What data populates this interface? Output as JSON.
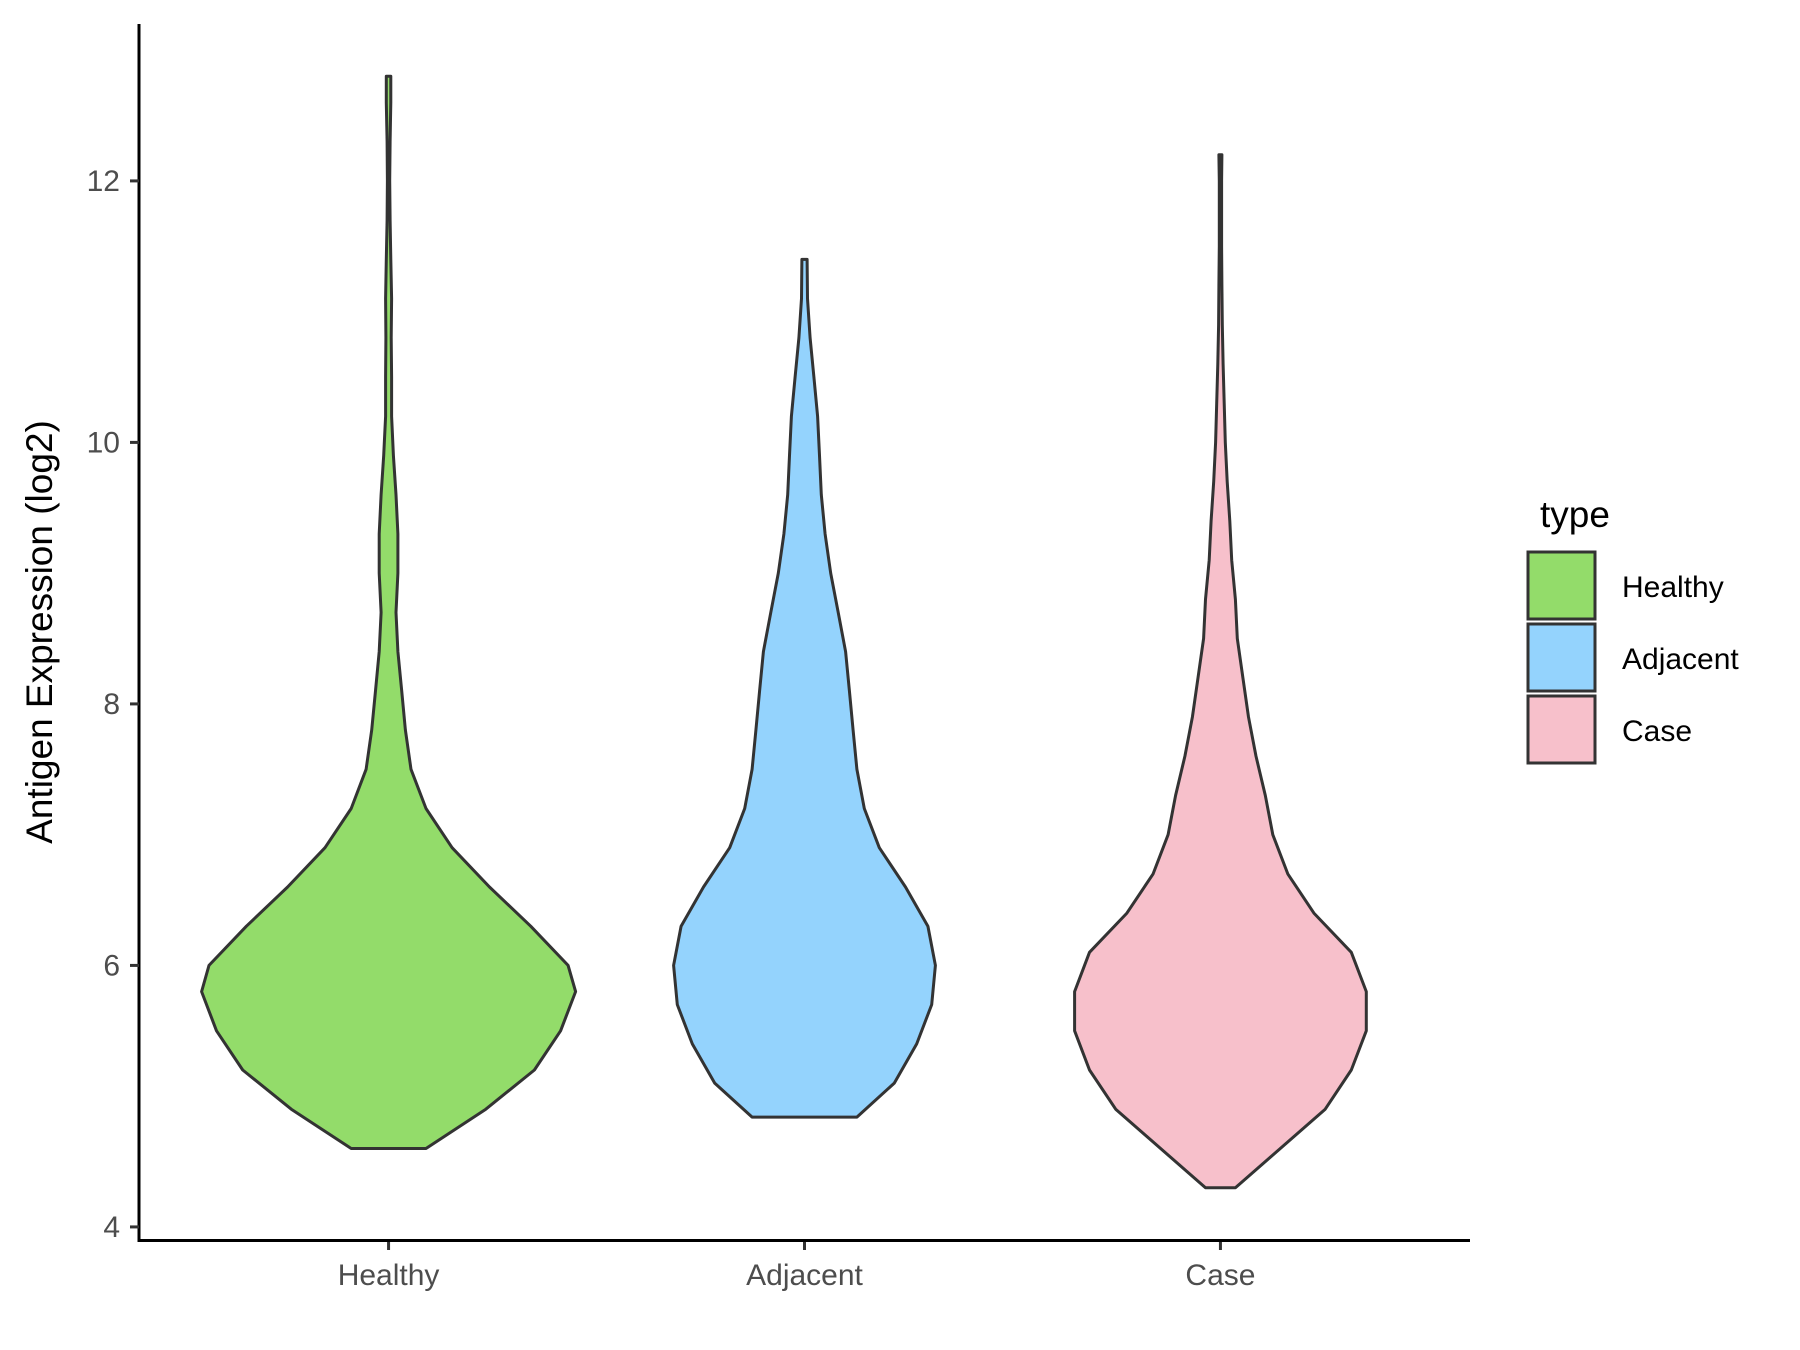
{
  "chart_data": {
    "type": "violin",
    "title": "",
    "xlabel": "",
    "ylabel": "Antigen Expression (log2)",
    "ylim": [
      3.9,
      13.2
    ],
    "yticks": [
      4,
      6,
      8,
      10,
      12
    ],
    "grid": false,
    "categories": [
      "Healthy",
      "Adjacent",
      "Case"
    ],
    "legend": {
      "title": "type",
      "position": "right",
      "entries": [
        "Healthy",
        "Adjacent",
        "Case"
      ]
    },
    "colors": {
      "Healthy": "#93dc6a",
      "Adjacent": "#94d3fd",
      "Case": "#f7c0cb",
      "outline": "#333333"
    },
    "series": [
      {
        "category": "Healthy",
        "min": 4.6,
        "max": 12.8,
        "density": [
          [
            4.6,
            0.1
          ],
          [
            4.9,
            0.26
          ],
          [
            5.2,
            0.39
          ],
          [
            5.5,
            0.46
          ],
          [
            5.8,
            0.5
          ],
          [
            6.0,
            0.48
          ],
          [
            6.3,
            0.38
          ],
          [
            6.6,
            0.27
          ],
          [
            6.9,
            0.17
          ],
          [
            7.2,
            0.1
          ],
          [
            7.5,
            0.06
          ],
          [
            7.8,
            0.045
          ],
          [
            8.1,
            0.035
          ],
          [
            8.4,
            0.025
          ],
          [
            8.7,
            0.02
          ],
          [
            9.0,
            0.025
          ],
          [
            9.3,
            0.025
          ],
          [
            9.6,
            0.02
          ],
          [
            9.9,
            0.013
          ],
          [
            10.2,
            0.008
          ],
          [
            10.5,
            0.008
          ],
          [
            10.8,
            0.007
          ],
          [
            11.1,
            0.008
          ],
          [
            11.4,
            0.006
          ],
          [
            11.7,
            0.004
          ],
          [
            12.0,
            0.003
          ],
          [
            12.3,
            0.004
          ],
          [
            12.6,
            0.006
          ],
          [
            12.8,
            0.006
          ]
        ]
      },
      {
        "category": "Adjacent",
        "min": 4.84,
        "max": 11.4,
        "density": [
          [
            4.84,
            0.14
          ],
          [
            5.1,
            0.24
          ],
          [
            5.4,
            0.3
          ],
          [
            5.7,
            0.34
          ],
          [
            6.0,
            0.35
          ],
          [
            6.3,
            0.33
          ],
          [
            6.6,
            0.27
          ],
          [
            6.9,
            0.2
          ],
          [
            7.2,
            0.16
          ],
          [
            7.5,
            0.14
          ],
          [
            7.8,
            0.13
          ],
          [
            8.1,
            0.12
          ],
          [
            8.4,
            0.11
          ],
          [
            8.7,
            0.09
          ],
          [
            9.0,
            0.07
          ],
          [
            9.3,
            0.055
          ],
          [
            9.6,
            0.045
          ],
          [
            9.9,
            0.04
          ],
          [
            10.2,
            0.035
          ],
          [
            10.5,
            0.025
          ],
          [
            10.8,
            0.015
          ],
          [
            11.1,
            0.008
          ],
          [
            11.4,
            0.007
          ]
        ]
      },
      {
        "category": "Case",
        "min": 4.3,
        "max": 12.2,
        "density": [
          [
            4.3,
            0.04
          ],
          [
            4.6,
            0.16
          ],
          [
            4.9,
            0.28
          ],
          [
            5.2,
            0.35
          ],
          [
            5.5,
            0.39
          ],
          [
            5.8,
            0.39
          ],
          [
            6.1,
            0.35
          ],
          [
            6.4,
            0.25
          ],
          [
            6.7,
            0.18
          ],
          [
            7.0,
            0.14
          ],
          [
            7.3,
            0.12
          ],
          [
            7.6,
            0.095
          ],
          [
            7.9,
            0.075
          ],
          [
            8.2,
            0.06
          ],
          [
            8.5,
            0.045
          ],
          [
            8.8,
            0.04
          ],
          [
            9.1,
            0.03
          ],
          [
            9.4,
            0.025
          ],
          [
            9.7,
            0.018
          ],
          [
            10.0,
            0.013
          ],
          [
            10.3,
            0.01
          ],
          [
            10.6,
            0.007
          ],
          [
            10.9,
            0.005
          ],
          [
            11.2,
            0.004
          ],
          [
            11.5,
            0.003
          ],
          [
            11.8,
            0.003
          ],
          [
            12.0,
            0.003
          ],
          [
            12.2,
            0.004
          ]
        ]
      }
    ]
  }
}
